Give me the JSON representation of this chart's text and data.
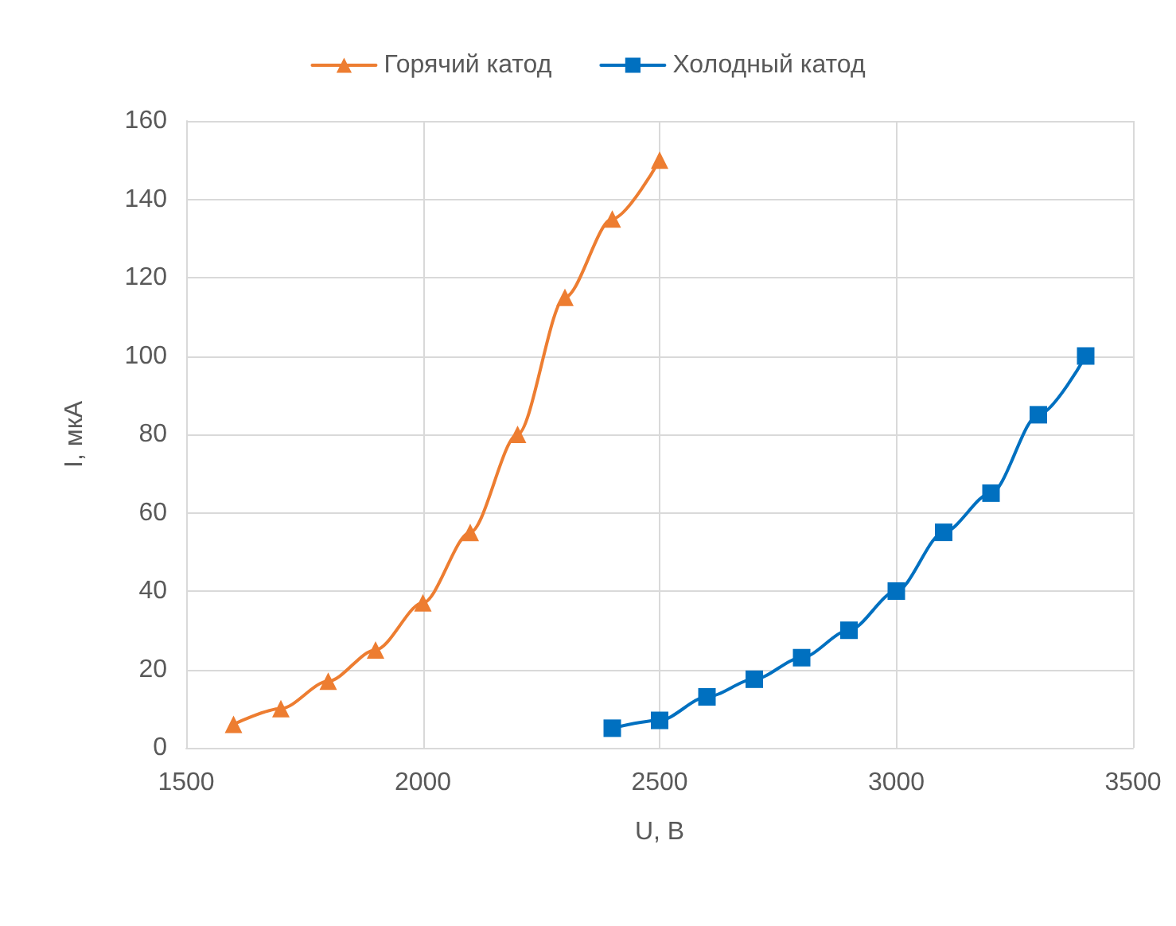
{
  "chart_data": {
    "type": "line",
    "xlabel": "U, В",
    "ylabel": "I, мкА",
    "xlim": [
      1500,
      3500
    ],
    "xticks": [
      1500,
      2000,
      2500,
      3000,
      3500
    ],
    "ylim": [
      0,
      160
    ],
    "yticks": [
      0,
      20,
      40,
      60,
      80,
      100,
      120,
      140,
      160
    ],
    "grid": true,
    "legend": "top",
    "series": [
      {
        "name": "Горячий катод",
        "color": "#ed7d31",
        "marker": "triangle",
        "x": [
          1600,
          1700,
          1800,
          1900,
          2000,
          2100,
          2200,
          2300,
          2400,
          2500
        ],
        "values": [
          6,
          10,
          17,
          25,
          37,
          55,
          80,
          115,
          135,
          150
        ]
      },
      {
        "name": "Холодный катод",
        "color": "#0070c0",
        "marker": "square",
        "x": [
          2400,
          2500,
          2600,
          2700,
          2800,
          2900,
          3000,
          3100,
          3200,
          3300,
          3400
        ],
        "values": [
          5,
          7,
          13,
          17.5,
          23,
          30,
          40,
          55,
          65,
          85,
          100
        ]
      }
    ]
  }
}
